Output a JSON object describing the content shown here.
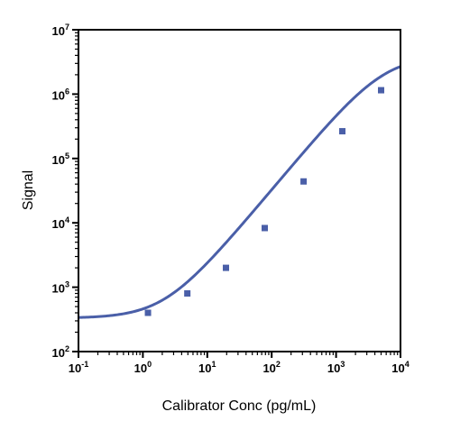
{
  "chart_data": {
    "type": "scatter",
    "title": "",
    "xlabel": "Calibrator Conc (pg/mL)",
    "ylabel": "Signal",
    "x_scale": "log",
    "y_scale": "log",
    "xlim": [
      0.1,
      10000
    ],
    "ylim": [
      100,
      10000000
    ],
    "x_ticks": [
      {
        "base": "10",
        "exp": "-1"
      },
      {
        "base": "10",
        "exp": "0"
      },
      {
        "base": "10",
        "exp": "1"
      },
      {
        "base": "10",
        "exp": "2"
      },
      {
        "base": "10",
        "exp": "3"
      },
      {
        "base": "10",
        "exp": "4"
      }
    ],
    "y_ticks": [
      {
        "base": "10",
        "exp": "2"
      },
      {
        "base": "10",
        "exp": "3"
      },
      {
        "base": "10",
        "exp": "4"
      },
      {
        "base": "10",
        "exp": "5"
      },
      {
        "base": "10",
        "exp": "6"
      },
      {
        "base": "10",
        "exp": "7"
      }
    ],
    "grid": false,
    "legend": "none",
    "series": [
      {
        "marker": "square",
        "color": "#4a5fa8",
        "points": [
          {
            "x": 1.2,
            "y": 400
          },
          {
            "x": 4.9,
            "y": 800
          },
          {
            "x": 19.5,
            "y": 2000
          },
          {
            "x": 78,
            "y": 8300
          },
          {
            "x": 313,
            "y": 44000
          },
          {
            "x": 1250,
            "y": 265000
          },
          {
            "x": 5000,
            "y": 1150000
          }
        ]
      }
    ],
    "fit_curve": {
      "model": "4PL",
      "color": "#4a5fa8",
      "bottom": 330,
      "top": 4000000,
      "ec50": 5500,
      "hill": 1.2
    }
  }
}
